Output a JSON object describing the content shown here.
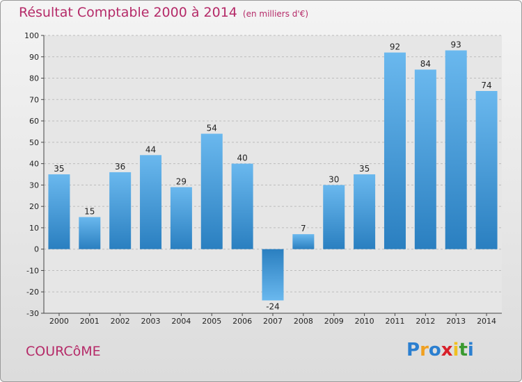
{
  "header": {
    "title": "Résultat Comptable 2000 à 2014",
    "subtitle": "(en milliers d'€)"
  },
  "footer": {
    "place": "COURCôME",
    "brand": [
      "P",
      "r",
      "o",
      "x",
      "i",
      "t",
      "i"
    ],
    "brand_colors": [
      "#2b7fd0",
      "#f0a020",
      "#2b7fd0",
      "#d8202a",
      "#f0c020",
      "#3a9a30",
      "#2b7fd0"
    ]
  },
  "colors": {
    "title": "#b52a68",
    "bar_light": "#6ab8ee",
    "bar_dark": "#2a7fc0",
    "grid": "#bcbcbc"
  },
  "chart_data": {
    "type": "bar",
    "categories": [
      "2000",
      "2001",
      "2002",
      "2003",
      "2004",
      "2005",
      "2006",
      "2007",
      "2008",
      "2009",
      "2010",
      "2011",
      "2012",
      "2013",
      "2014"
    ],
    "values": [
      35,
      15,
      36,
      44,
      29,
      54,
      40,
      -24,
      7,
      30,
      35,
      92,
      84,
      93,
      74
    ],
    "ylim": [
      -30,
      100
    ],
    "yticks": [
      -30,
      -20,
      -10,
      0,
      10,
      20,
      30,
      40,
      50,
      60,
      70,
      80,
      90,
      100
    ],
    "grid": true
  }
}
